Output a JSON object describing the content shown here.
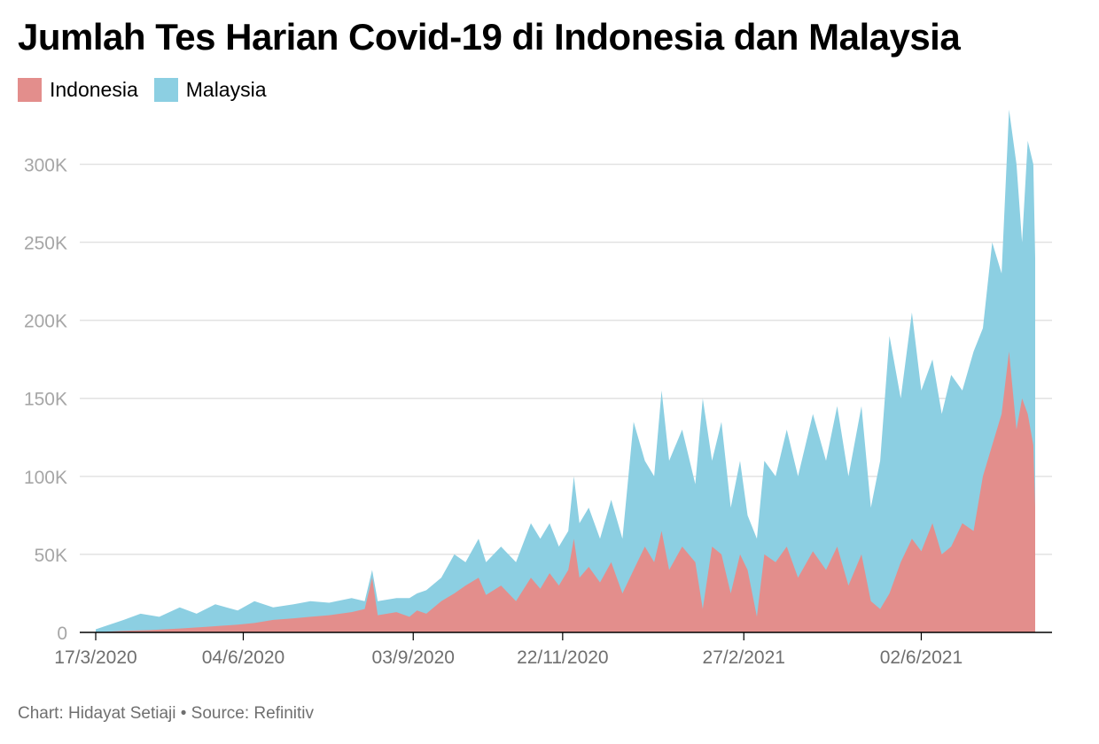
{
  "chart_data": {
    "type": "area",
    "stacked": true,
    "title": "Jumlah Tes Harian Covid-19 di Indonesia dan Malaysia",
    "xlabel": "",
    "ylabel": "",
    "ylim": [
      0,
      340000
    ],
    "y_ticks": [
      0,
      50000,
      100000,
      150000,
      200000,
      250000,
      300000
    ],
    "y_tick_labels": [
      "0",
      "50K",
      "100K",
      "150K",
      "200K",
      "250K",
      "300K"
    ],
    "x_tick_labels": [
      "17/3/2020",
      "04/6/2020",
      "03/9/2020",
      "22/11/2020",
      "27/2/2021",
      "02/6/2021"
    ],
    "x_tick_dates": [
      "2020-03-17",
      "2020-06-04",
      "2020-09-03",
      "2020-11-22",
      "2021-02-27",
      "2021-06-02"
    ],
    "x_range": [
      "2020-03-17",
      "2021-08-02"
    ],
    "grid": true,
    "legend_position": "top-left",
    "series": [
      {
        "name": "Indonesia",
        "color": "#e38e8c",
        "points": [
          [
            "2020-03-17",
            0
          ],
          [
            "2020-04-01",
            1000
          ],
          [
            "2020-04-15",
            1500
          ],
          [
            "2020-05-01",
            2500
          ],
          [
            "2020-05-15",
            3500
          ],
          [
            "2020-06-01",
            5000
          ],
          [
            "2020-06-10",
            6000
          ],
          [
            "2020-06-20",
            8000
          ],
          [
            "2020-07-01",
            9000
          ],
          [
            "2020-07-10",
            10000
          ],
          [
            "2020-07-20",
            11000
          ],
          [
            "2020-08-01",
            13000
          ],
          [
            "2020-08-08",
            15000
          ],
          [
            "2020-08-12",
            35000
          ],
          [
            "2020-08-15",
            11000
          ],
          [
            "2020-08-25",
            13000
          ],
          [
            "2020-09-01",
            10000
          ],
          [
            "2020-09-05",
            14000
          ],
          [
            "2020-09-10",
            12000
          ],
          [
            "2020-09-18",
            20000
          ],
          [
            "2020-09-25",
            25000
          ],
          [
            "2020-10-01",
            30000
          ],
          [
            "2020-10-08",
            35000
          ],
          [
            "2020-10-12",
            24000
          ],
          [
            "2020-10-20",
            30000
          ],
          [
            "2020-10-28",
            20000
          ],
          [
            "2020-11-05",
            35000
          ],
          [
            "2020-11-10",
            28000
          ],
          [
            "2020-11-15",
            38000
          ],
          [
            "2020-11-20",
            30000
          ],
          [
            "2020-11-25",
            40000
          ],
          [
            "2020-11-28",
            60000
          ],
          [
            "2020-12-01",
            35000
          ],
          [
            "2020-12-06",
            42000
          ],
          [
            "2020-12-12",
            32000
          ],
          [
            "2020-12-18",
            45000
          ],
          [
            "2020-12-24",
            25000
          ],
          [
            "2020-12-30",
            40000
          ],
          [
            "2021-01-05",
            55000
          ],
          [
            "2021-01-10",
            45000
          ],
          [
            "2021-01-14",
            65000
          ],
          [
            "2021-01-18",
            40000
          ],
          [
            "2021-01-25",
            55000
          ],
          [
            "2021-02-01",
            45000
          ],
          [
            "2021-02-05",
            15000
          ],
          [
            "2021-02-10",
            55000
          ],
          [
            "2021-02-15",
            50000
          ],
          [
            "2021-02-20",
            25000
          ],
          [
            "2021-02-25",
            50000
          ],
          [
            "2021-03-01",
            40000
          ],
          [
            "2021-03-06",
            10000
          ],
          [
            "2021-03-10",
            50000
          ],
          [
            "2021-03-16",
            45000
          ],
          [
            "2021-03-22",
            55000
          ],
          [
            "2021-03-28",
            35000
          ],
          [
            "2021-04-05",
            52000
          ],
          [
            "2021-04-12",
            40000
          ],
          [
            "2021-04-18",
            55000
          ],
          [
            "2021-04-24",
            30000
          ],
          [
            "2021-05-01",
            50000
          ],
          [
            "2021-05-06",
            20000
          ],
          [
            "2021-05-11",
            15000
          ],
          [
            "2021-05-16",
            25000
          ],
          [
            "2021-05-22",
            45000
          ],
          [
            "2021-05-28",
            60000
          ],
          [
            "2021-06-02",
            52000
          ],
          [
            "2021-06-08",
            70000
          ],
          [
            "2021-06-13",
            50000
          ],
          [
            "2021-06-18",
            55000
          ],
          [
            "2021-06-24",
            70000
          ],
          [
            "2021-06-30",
            65000
          ],
          [
            "2021-07-05",
            100000
          ],
          [
            "2021-07-10",
            120000
          ],
          [
            "2021-07-15",
            140000
          ],
          [
            "2021-07-19",
            180000
          ],
          [
            "2021-07-23",
            130000
          ],
          [
            "2021-07-26",
            150000
          ],
          [
            "2021-07-29",
            140000
          ],
          [
            "2021-08-01",
            120000
          ],
          [
            "2021-08-02",
            80000
          ]
        ]
      },
      {
        "name": "Malaysia",
        "color": "#8ccfe2",
        "total_points": [
          [
            "2020-03-17",
            2000
          ],
          [
            "2020-04-01",
            8000
          ],
          [
            "2020-04-10",
            12000
          ],
          [
            "2020-04-20",
            10000
          ],
          [
            "2020-05-01",
            16000
          ],
          [
            "2020-05-10",
            12000
          ],
          [
            "2020-05-20",
            18000
          ],
          [
            "2020-06-01",
            14000
          ],
          [
            "2020-06-10",
            20000
          ],
          [
            "2020-06-20",
            16000
          ],
          [
            "2020-07-01",
            18000
          ],
          [
            "2020-07-10",
            20000
          ],
          [
            "2020-07-20",
            19000
          ],
          [
            "2020-08-01",
            22000
          ],
          [
            "2020-08-08",
            20000
          ],
          [
            "2020-08-12",
            40000
          ],
          [
            "2020-08-15",
            20000
          ],
          [
            "2020-08-25",
            22000
          ],
          [
            "2020-09-01",
            22000
          ],
          [
            "2020-09-05",
            25000
          ],
          [
            "2020-09-10",
            27000
          ],
          [
            "2020-09-18",
            35000
          ],
          [
            "2020-09-25",
            50000
          ],
          [
            "2020-10-01",
            45000
          ],
          [
            "2020-10-08",
            60000
          ],
          [
            "2020-10-12",
            45000
          ],
          [
            "2020-10-20",
            55000
          ],
          [
            "2020-10-28",
            45000
          ],
          [
            "2020-11-05",
            70000
          ],
          [
            "2020-11-10",
            60000
          ],
          [
            "2020-11-15",
            70000
          ],
          [
            "2020-11-20",
            55000
          ],
          [
            "2020-11-25",
            65000
          ],
          [
            "2020-11-28",
            100000
          ],
          [
            "2020-12-01",
            70000
          ],
          [
            "2020-12-06",
            80000
          ],
          [
            "2020-12-12",
            60000
          ],
          [
            "2020-12-18",
            85000
          ],
          [
            "2020-12-24",
            60000
          ],
          [
            "2020-12-30",
            135000
          ],
          [
            "2021-01-05",
            110000
          ],
          [
            "2021-01-10",
            100000
          ],
          [
            "2021-01-14",
            155000
          ],
          [
            "2021-01-18",
            110000
          ],
          [
            "2021-01-25",
            130000
          ],
          [
            "2021-02-01",
            95000
          ],
          [
            "2021-02-05",
            150000
          ],
          [
            "2021-02-10",
            110000
          ],
          [
            "2021-02-15",
            135000
          ],
          [
            "2021-02-20",
            80000
          ],
          [
            "2021-02-25",
            110000
          ],
          [
            "2021-03-01",
            75000
          ],
          [
            "2021-03-06",
            60000
          ],
          [
            "2021-03-10",
            110000
          ],
          [
            "2021-03-16",
            100000
          ],
          [
            "2021-03-22",
            130000
          ],
          [
            "2021-03-28",
            100000
          ],
          [
            "2021-04-05",
            140000
          ],
          [
            "2021-04-12",
            110000
          ],
          [
            "2021-04-18",
            145000
          ],
          [
            "2021-04-24",
            100000
          ],
          [
            "2021-05-01",
            145000
          ],
          [
            "2021-05-06",
            80000
          ],
          [
            "2021-05-11",
            110000
          ],
          [
            "2021-05-16",
            190000
          ],
          [
            "2021-05-22",
            150000
          ],
          [
            "2021-05-28",
            205000
          ],
          [
            "2021-06-02",
            155000
          ],
          [
            "2021-06-08",
            175000
          ],
          [
            "2021-06-13",
            140000
          ],
          [
            "2021-06-18",
            165000
          ],
          [
            "2021-06-24",
            155000
          ],
          [
            "2021-06-30",
            180000
          ],
          [
            "2021-07-05",
            195000
          ],
          [
            "2021-07-10",
            250000
          ],
          [
            "2021-07-15",
            230000
          ],
          [
            "2021-07-19",
            335000
          ],
          [
            "2021-07-23",
            300000
          ],
          [
            "2021-07-26",
            250000
          ],
          [
            "2021-07-29",
            315000
          ],
          [
            "2021-08-01",
            300000
          ],
          [
            "2021-08-02",
            240000
          ]
        ]
      }
    ]
  },
  "footer": {
    "credit": "Chart: Hidayat Setiaji • Source: Refinitiv"
  }
}
